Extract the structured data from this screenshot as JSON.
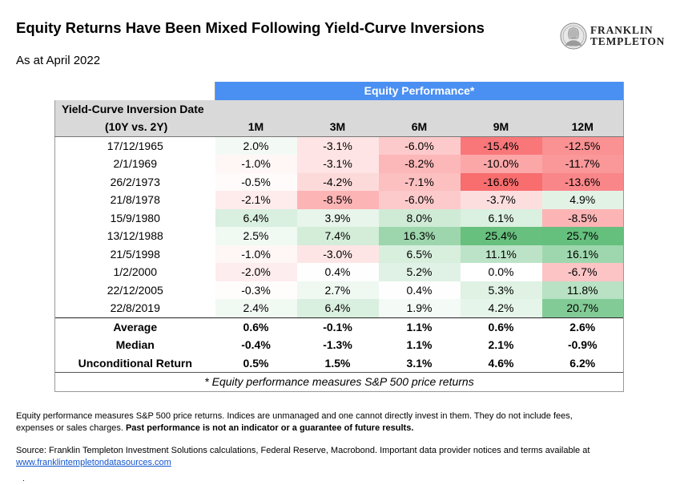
{
  "header": {
    "title": "Equity Returns Have Been Mixed Following Yield-Curve Inversions",
    "subtitle": "As at April 2022",
    "logo_line1": "FRANKLIN",
    "logo_line2": "TEMPLETON"
  },
  "table": {
    "band_label": "Equity Performance*",
    "row_header_line1": "Yield-Curve Inversion Date",
    "row_header_line2": "(10Y vs. 2Y)",
    "footnote": "* Equity performance measures S&P 500 price returns"
  },
  "colors": {
    "band": "#4a8ff2",
    "header_grey": "#d9d9d9",
    "positive": "#63be7b",
    "negative": "#f8696b"
  },
  "chart_data": {
    "type": "table",
    "columns": [
      "1M",
      "3M",
      "6M",
      "9M",
      "12M"
    ],
    "rows": [
      {
        "label": "17/12/1965",
        "values": [
          "2.0%",
          "-3.1%",
          "-6.0%",
          "-15.4%",
          "-12.5%"
        ]
      },
      {
        "label": "2/1/1969",
        "values": [
          "-1.0%",
          "-3.1%",
          "-8.2%",
          "-10.0%",
          "-11.7%"
        ]
      },
      {
        "label": "26/2/1973",
        "values": [
          "-0.5%",
          "-4.2%",
          "-7.1%",
          "-16.6%",
          "-13.6%"
        ]
      },
      {
        "label": "21/8/1978",
        "values": [
          "-2.1%",
          "-8.5%",
          "-6.0%",
          "-3.7%",
          "4.9%"
        ]
      },
      {
        "label": "15/9/1980",
        "values": [
          "6.4%",
          "3.9%",
          "8.0%",
          "6.1%",
          "-8.5%"
        ]
      },
      {
        "label": "13/12/1988",
        "values": [
          "2.5%",
          "7.4%",
          "16.3%",
          "25.4%",
          "25.7%"
        ]
      },
      {
        "label": "21/5/1998",
        "values": [
          "-1.0%",
          "-3.0%",
          "6.5%",
          "11.1%",
          "16.1%"
        ]
      },
      {
        "label": "1/2/2000",
        "values": [
          "-2.0%",
          "0.4%",
          "5.2%",
          "0.0%",
          "-6.7%"
        ]
      },
      {
        "label": "22/12/2005",
        "values": [
          "-0.3%",
          "2.7%",
          "0.4%",
          "5.3%",
          "11.8%"
        ]
      },
      {
        "label": "22/8/2019",
        "values": [
          "2.4%",
          "6.4%",
          "1.9%",
          "4.2%",
          "20.7%"
        ]
      }
    ],
    "summary": [
      {
        "label": "Average",
        "values": [
          "0.6%",
          "-0.1%",
          "1.1%",
          "0.6%",
          "2.6%"
        ]
      },
      {
        "label": "Median",
        "values": [
          "-0.4%",
          "-1.3%",
          "1.1%",
          "2.1%",
          "-0.9%"
        ]
      },
      {
        "label": "Unconditional Return",
        "values": [
          "0.5%",
          "1.5%",
          "3.1%",
          "4.6%",
          "6.2%"
        ]
      }
    ]
  },
  "notes": {
    "line1": "Equity performance measures S&P 500 price returns. Indices are unmanaged and one cannot directly invest in them. They do not include fees,",
    "line2_plain": "expenses or sales charges. ",
    "line2_bold": "Past performance is not an indicator or a guarantee of future results.",
    "source": "Source: Franklin Templeton Investment Solutions calculations, Federal Reserve, Macrobond. Important data provider notices and terms available at",
    "link": "www.franklintempletondatasources.com",
    "trailing": "."
  }
}
